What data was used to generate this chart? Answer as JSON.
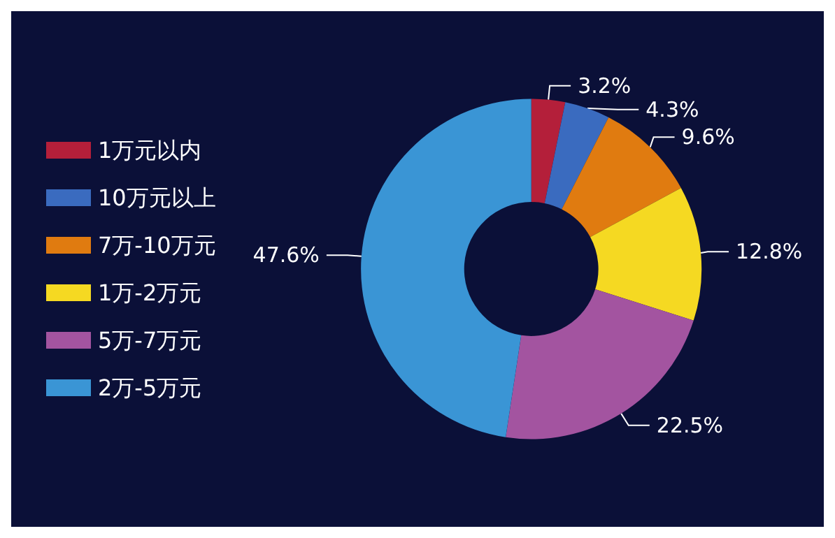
{
  "chart_data": {
    "type": "donut",
    "categories": [
      "1万元以内",
      "10万元以上",
      "7万-10万元",
      "1万-2万元",
      "5万-7万元",
      "2万-5万元"
    ],
    "values": [
      3.2,
      4.3,
      9.6,
      12.8,
      22.5,
      47.6
    ],
    "colors": [
      "#b41f3a",
      "#3a6bbf",
      "#e07b10",
      "#f5d922",
      "#a354a0",
      "#3a95d5"
    ],
    "value_labels": [
      "3.2%",
      "4.3%",
      "9.6%",
      "12.8%",
      "22.5%",
      "47.6%"
    ],
    "legend": "left"
  }
}
